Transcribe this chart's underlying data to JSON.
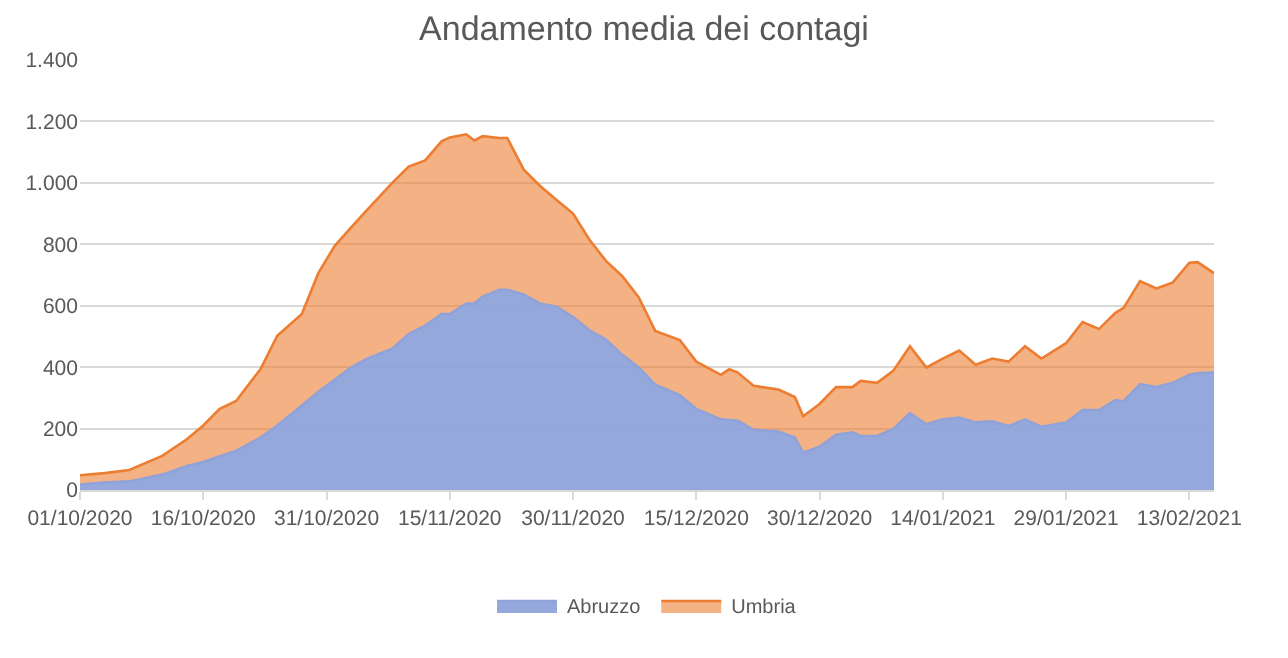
{
  "chart_data": {
    "type": "area",
    "stacked": true,
    "title": "Andamento media dei contagi",
    "x": [
      "2020-10-01",
      "2020-10-04",
      "2020-10-07",
      "2020-10-11",
      "2020-10-14",
      "2020-10-16",
      "2020-10-18",
      "2020-10-20",
      "2020-10-23",
      "2020-10-25",
      "2020-10-28",
      "2020-10-30",
      "2020-11-01",
      "2020-11-03",
      "2020-11-05",
      "2020-11-08",
      "2020-11-10",
      "2020-11-12",
      "2020-11-14",
      "2020-11-15",
      "2020-11-17",
      "2020-11-18",
      "2020-11-19",
      "2020-11-21",
      "2020-11-22",
      "2020-11-24",
      "2020-11-26",
      "2020-11-28",
      "2020-11-30",
      "2020-12-02",
      "2020-12-04",
      "2020-12-06",
      "2020-12-08",
      "2020-12-10",
      "2020-12-13",
      "2020-12-15",
      "2020-12-18",
      "2020-12-19",
      "2020-12-20",
      "2020-12-22",
      "2020-12-25",
      "2020-12-27",
      "2020-12-28",
      "2020-12-30",
      "2021-01-01",
      "2021-01-03",
      "2021-01-04",
      "2021-01-06",
      "2021-01-08",
      "2021-01-10",
      "2021-01-12",
      "2021-01-14",
      "2021-01-16",
      "2021-01-18",
      "2021-01-20",
      "2021-01-22",
      "2021-01-24",
      "2021-01-26",
      "2021-01-29",
      "2021-01-31",
      "2021-02-02",
      "2021-02-04",
      "2021-02-05",
      "2021-02-07",
      "2021-02-09",
      "2021-02-11",
      "2021-02-13",
      "2021-02-14",
      "2021-02-16"
    ],
    "series": [
      {
        "name": "Abruzzo",
        "color": "#8fa3da",
        "values": [
          18,
          24,
          28,
          50,
          78,
          91,
          110,
          127,
          171,
          210,
          275,
          320,
          359,
          399,
          428,
          460,
          508,
          535,
          573,
          573,
          607,
          607,
          630,
          652,
          652,
          637,
          607,
          597,
          563,
          520,
          490,
          440,
          399,
          343,
          309,
          264,
          230,
          228,
          226,
          196,
          190,
          171,
          121,
          141,
          180,
          188,
          176,
          176,
          200,
          250,
          214,
          230,
          236,
          220,
          224,
          208,
          230,
          206,
          220,
          260,
          260,
          293,
          289,
          345,
          335,
          349,
          375,
          380,
          383
        ]
      },
      {
        "name": "Umbria",
        "color": "#ed7d31",
        "values": [
          30,
          31,
          37,
          61,
          87,
          119,
          154,
          163,
          224,
          292,
          298,
          386,
          436,
          456,
          486,
          540,
          545,
          538,
          562,
          575,
          551,
          531,
          522,
          494,
          494,
          406,
          383,
          347,
          337,
          295,
          256,
          256,
          228,
          175,
          179,
          154,
          145,
          165,
          157,
          143,
          137,
          132,
          119,
          139,
          155,
          147,
          179,
          173,
          189,
          218,
          185,
          198,
          218,
          188,
          204,
          210,
          238,
          222,
          258,
          287,
          264,
          284,
          304,
          335,
          321,
          327,
          365,
          362,
          323
        ]
      }
    ],
    "xlim": [
      "2020-10-01",
      "2021-02-16"
    ],
    "xticks": [
      {
        "value": "2020-10-01",
        "label": "01/10/2020"
      },
      {
        "value": "2020-10-16",
        "label": "16/10/2020"
      },
      {
        "value": "2020-10-31",
        "label": "31/10/2020"
      },
      {
        "value": "2020-11-15",
        "label": "15/11/2020"
      },
      {
        "value": "2020-11-30",
        "label": "30/11/2020"
      },
      {
        "value": "2020-12-15",
        "label": "15/12/2020"
      },
      {
        "value": "2020-12-30",
        "label": "30/12/2020"
      },
      {
        "value": "2021-01-14",
        "label": "14/01/2021"
      },
      {
        "value": "2021-01-29",
        "label": "29/01/2021"
      },
      {
        "value": "2021-02-13",
        "label": "13/02/2021"
      }
    ],
    "ylim": [
      0,
      1400
    ],
    "yticks": [
      0,
      {
        "value": 200,
        "label": "200"
      },
      {
        "value": 400,
        "label": "400"
      },
      {
        "value": 600,
        "label": "600"
      },
      {
        "value": 800,
        "label": "800"
      },
      {
        "value": 1000,
        "label": "1.000"
      },
      {
        "value": 1200,
        "label": "1.200"
      },
      {
        "value": 1400,
        "label": "1.400"
      }
    ],
    "grid": "y",
    "legend": "bottom"
  }
}
